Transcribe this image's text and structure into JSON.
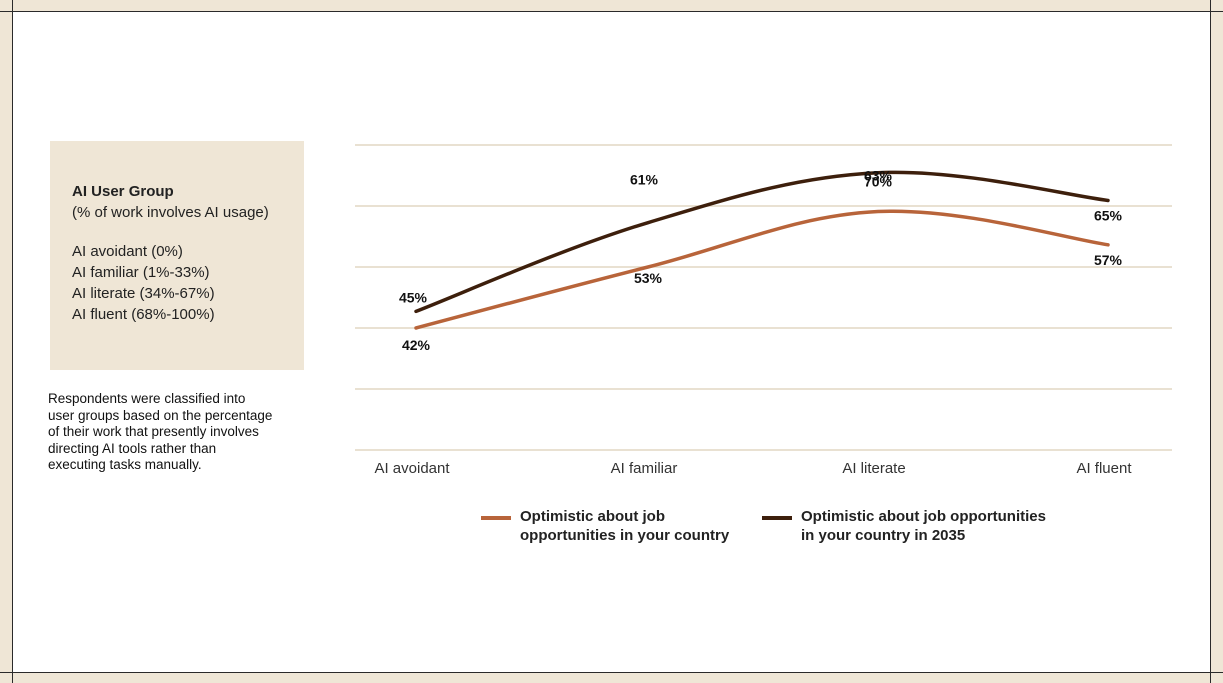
{
  "chart_data": {
    "type": "line",
    "categories": [
      "AI avoidant",
      "AI familiar",
      "AI literate",
      "AI fluent"
    ],
    "series": [
      {
        "name": "Optimistic about job opportunities in your country",
        "label_lines": [
          "Optimistic about job",
          "opportunities in your country"
        ],
        "color": "#b8643a",
        "values": [
          42,
          53,
          63,
          57
        ],
        "labels": [
          "42%",
          "53%",
          "63%",
          "57%"
        ]
      },
      {
        "name": "Optimistic about job opportunities in your country in 2035",
        "label_lines": [
          "Optimistic about job opportunities",
          "in your country in 2035"
        ],
        "color": "#3d1f0c",
        "values": [
          45,
          61,
          70,
          65
        ],
        "labels": [
          "45%",
          "61%",
          "70%",
          "65%"
        ]
      }
    ],
    "ylim": [
      20,
      75
    ],
    "grid": true,
    "legend_position": "bottom"
  },
  "legend_box": {
    "title": "AI User Group",
    "subtitle": "(% of work involves AI usage)",
    "groups": [
      "AI avoidant (0%)",
      "AI familiar (1%-33%)",
      "AI literate (34%-67%)",
      "AI fluent (68%-100%)"
    ]
  },
  "note": {
    "lines": [
      "Respondents were classified into",
      "user groups based on the percentage",
      "of their work that presently involves",
      "directing AI tools rather than",
      "executing tasks manually."
    ]
  },
  "colors": {
    "background": "#efe6d6",
    "card": "#ffffff",
    "grid": "#e2d7c4"
  }
}
